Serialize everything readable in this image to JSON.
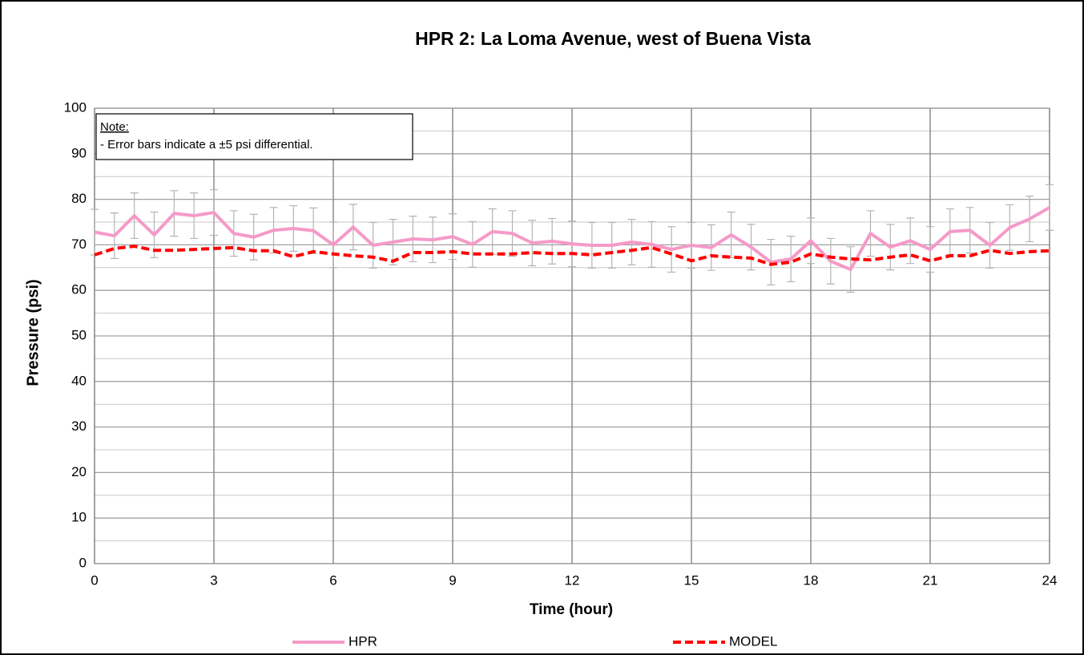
{
  "chart_data": {
    "type": "line",
    "title": "HPR 2: La Loma Avenue, west of Buena Vista",
    "x_label": "Time (hour)",
    "y_label": "Pressure (psi)",
    "annotation": {
      "heading": "Note:",
      "text": "- Error bars indicate a ±5 psi differential."
    },
    "x": [
      0,
      0.5,
      1,
      1.5,
      2,
      2.5,
      3,
      3.5,
      4,
      4.5,
      5,
      5.5,
      6,
      6.5,
      7,
      7.5,
      8,
      8.5,
      9,
      9.5,
      10,
      10.5,
      11,
      11.5,
      12,
      12.5,
      13,
      13.5,
      14,
      14.5,
      15,
      15.5,
      16,
      16.5,
      17,
      17.5,
      18,
      18.5,
      19,
      19.5,
      20,
      20.5,
      21,
      21.5,
      22,
      22.5,
      23,
      23.5,
      24
    ],
    "series": [
      {
        "name": "HPR",
        "color": "#f59ac8",
        "dash": false,
        "error": 5,
        "values": [
          72.8,
          72,
          76.4,
          72.2,
          76.9,
          76.4,
          77.1,
          72.5,
          71.7,
          73.2,
          73.6,
          73.1,
          70,
          73.9,
          69.9,
          70.6,
          71.3,
          71.1,
          71.8,
          70.1,
          72.9,
          72.5,
          70.4,
          70.8,
          70.2,
          69.9,
          69.9,
          70.6,
          70.1,
          69,
          69.9,
          69.4,
          72.2,
          69.5,
          66.2,
          66.9,
          70.9,
          66.4,
          64.6,
          72.5,
          69.5,
          70.9,
          69,
          72.9,
          73.2,
          69.9,
          73.8,
          75.7,
          78.2
        ]
      },
      {
        "name": "MODEL",
        "color": "#ff0000",
        "dash": true,
        "values": [
          67.8,
          69.2,
          69.7,
          68.8,
          68.8,
          69,
          69.2,
          69.4,
          68.7,
          68.7,
          67.4,
          68.5,
          68,
          67.6,
          67.3,
          66.4,
          68.3,
          68.3,
          68.5,
          68,
          68,
          68,
          68.3,
          68.1,
          68.1,
          67.8,
          68.3,
          68.8,
          69.4,
          68,
          66.5,
          67.6,
          67.3,
          67.1,
          65.7,
          66.2,
          68,
          67.3,
          66.9,
          66.7,
          67.3,
          67.8,
          66.5,
          67.6,
          67.6,
          68.8,
          68.1,
          68.5,
          68.7
        ]
      }
    ],
    "xlim": [
      0,
      24
    ],
    "xticks": [
      0,
      3,
      6,
      9,
      12,
      15,
      18,
      21,
      24
    ],
    "ylim": [
      0,
      100
    ],
    "yticks": [
      0,
      10,
      20,
      30,
      40,
      50,
      60,
      70,
      80,
      90,
      100
    ],
    "minor_yticks": [
      5,
      15,
      25,
      35,
      45,
      55,
      65,
      75,
      85,
      95
    ],
    "grid": true,
    "legend": "bottom"
  }
}
